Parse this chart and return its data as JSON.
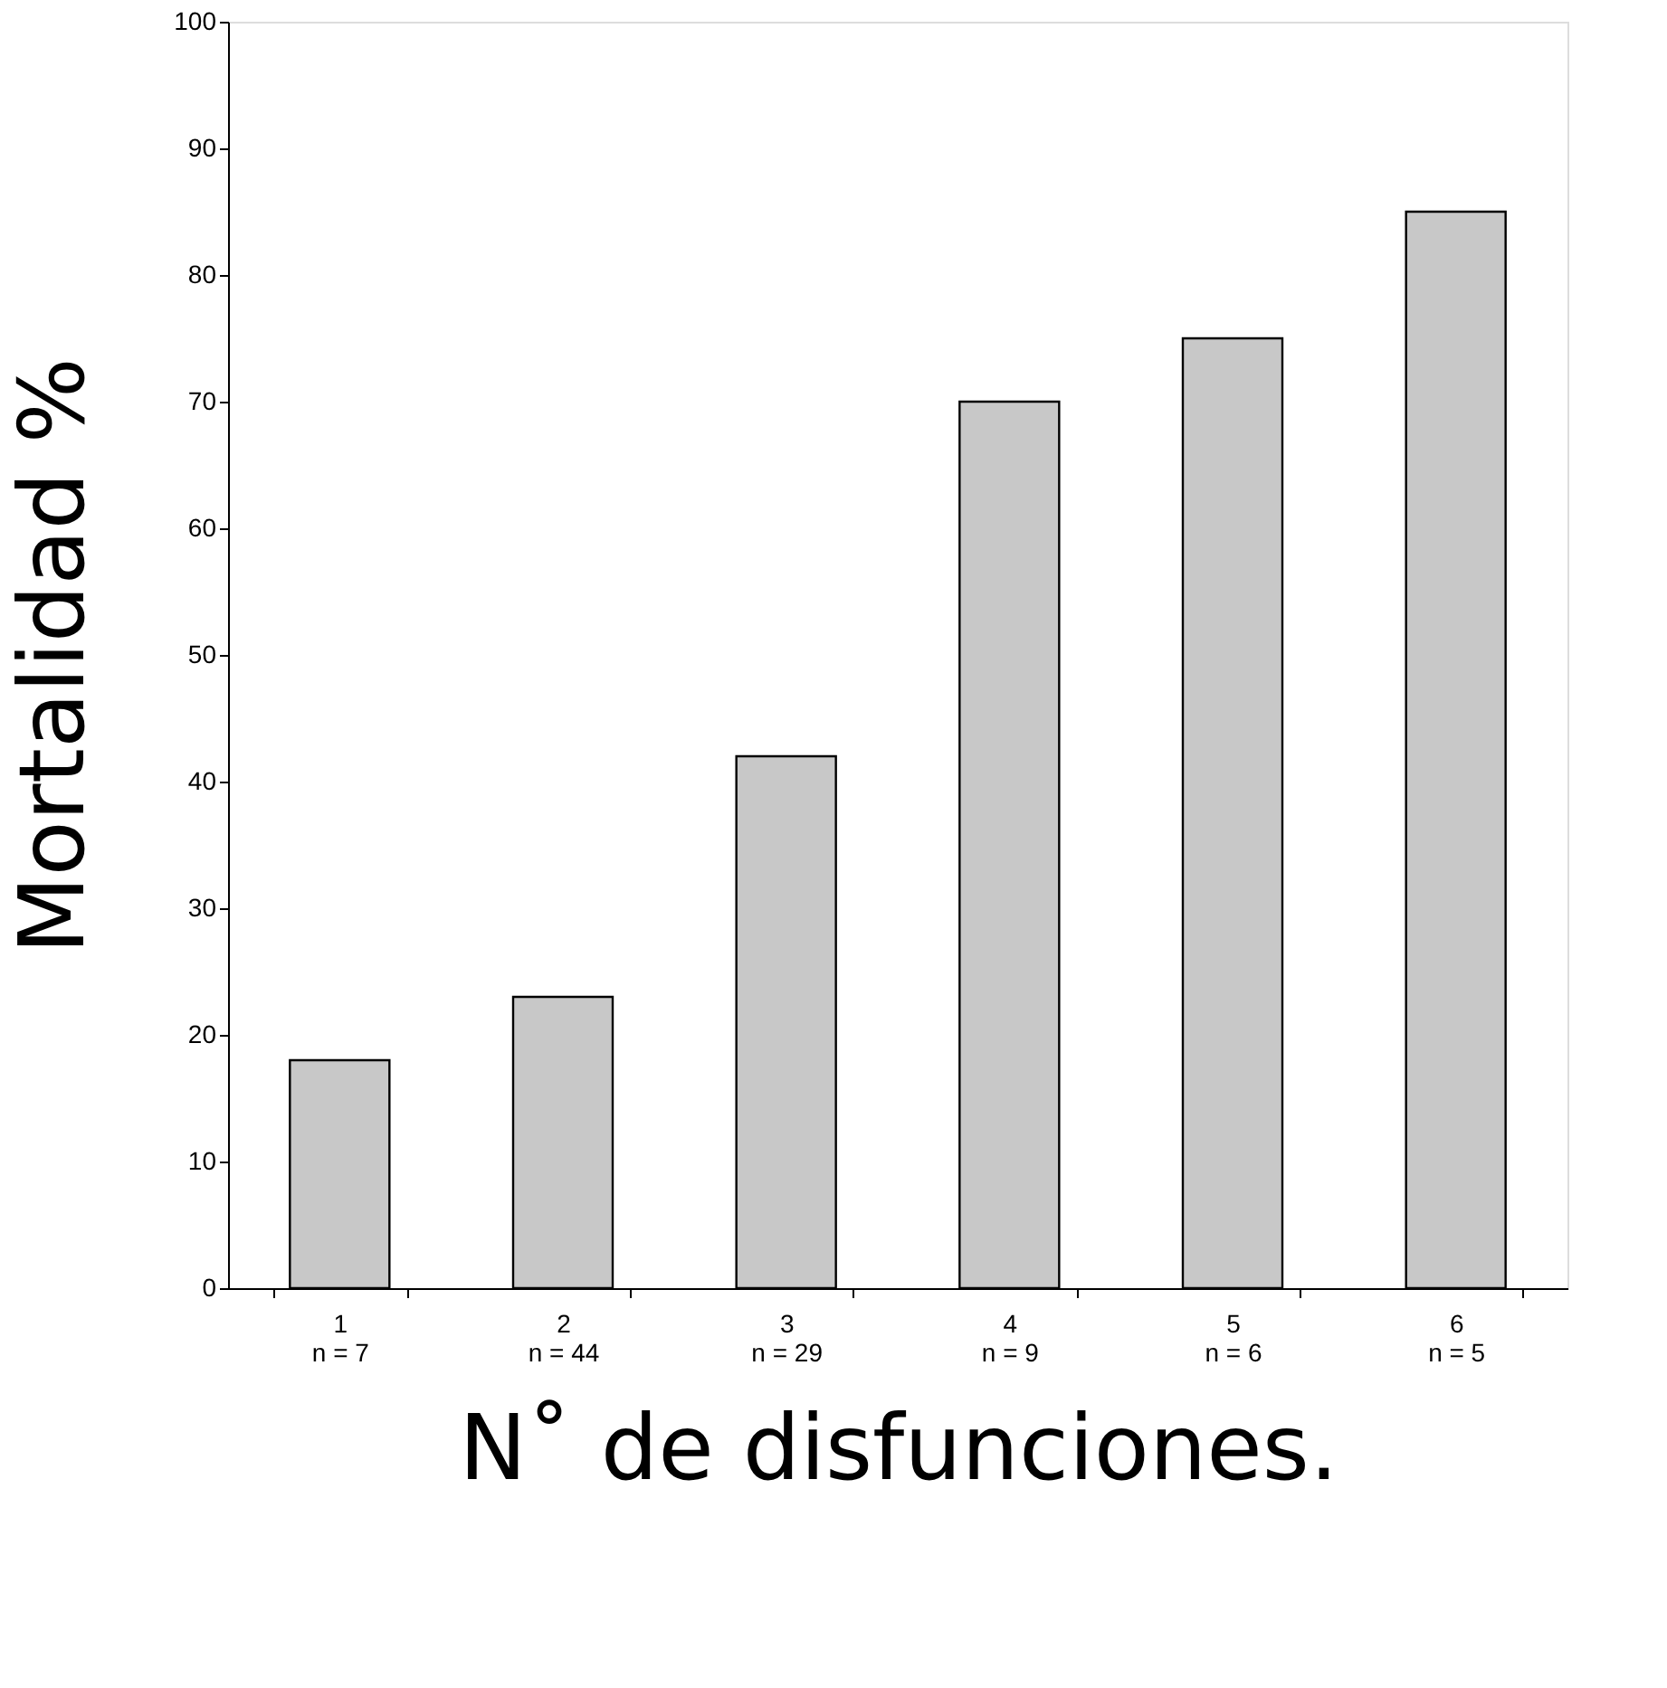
{
  "chart_data": {
    "type": "bar",
    "xlabel": "N˚   de disfunciones.",
    "ylabel": "Mortalidad %",
    "categories": [
      "1\nn = 7",
      "2\nn = 44",
      "3\nn = 29",
      "4\nn = 9",
      "5\nn = 6",
      "6\nn = 5"
    ],
    "values": [
      18,
      23,
      42,
      70,
      75,
      85
    ],
    "color": "#c8c8c8",
    "ylim": [
      0,
      100
    ],
    "yticks": [
      0,
      10,
      20,
      30,
      40,
      50,
      60,
      70,
      80,
      90,
      100
    ],
    "grid": false
  }
}
